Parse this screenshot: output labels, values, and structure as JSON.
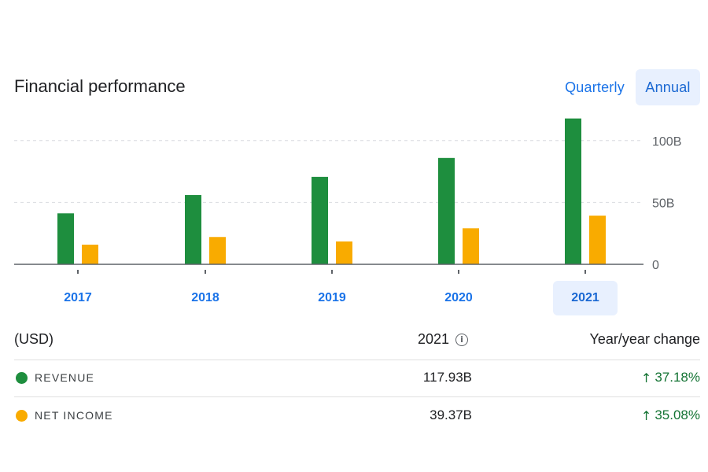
{
  "header": {
    "title": "Financial performance",
    "toggle_quarterly": "Quarterly",
    "toggle_annual": "Annual"
  },
  "chart_data": {
    "type": "bar",
    "categories": [
      "2017",
      "2018",
      "2019",
      "2020",
      "2021"
    ],
    "series": [
      {
        "name": "Revenue",
        "color": "#1e8e3e",
        "values": [
          41.2,
          56.0,
          70.7,
          86.0,
          117.93
        ]
      },
      {
        "name": "Net income",
        "color": "#f9ab00",
        "values": [
          15.9,
          22.1,
          18.5,
          29.1,
          39.37
        ]
      }
    ],
    "ylim": [
      0,
      125
    ],
    "yticks": [
      0,
      50,
      100
    ],
    "ytick_labels": [
      "0",
      "50B",
      "100B"
    ],
    "selected_category": "2021"
  },
  "table": {
    "currency_label": "(USD)",
    "year_header": "2021",
    "change_header": "Year/year change",
    "rows": [
      {
        "label": "REVENUE",
        "value": "117.93B",
        "change": "37.18%",
        "color": "#1e8e3e"
      },
      {
        "label": "NET INCOME",
        "value": "39.37B",
        "change": "35.08%",
        "color": "#f9ab00"
      }
    ]
  }
}
